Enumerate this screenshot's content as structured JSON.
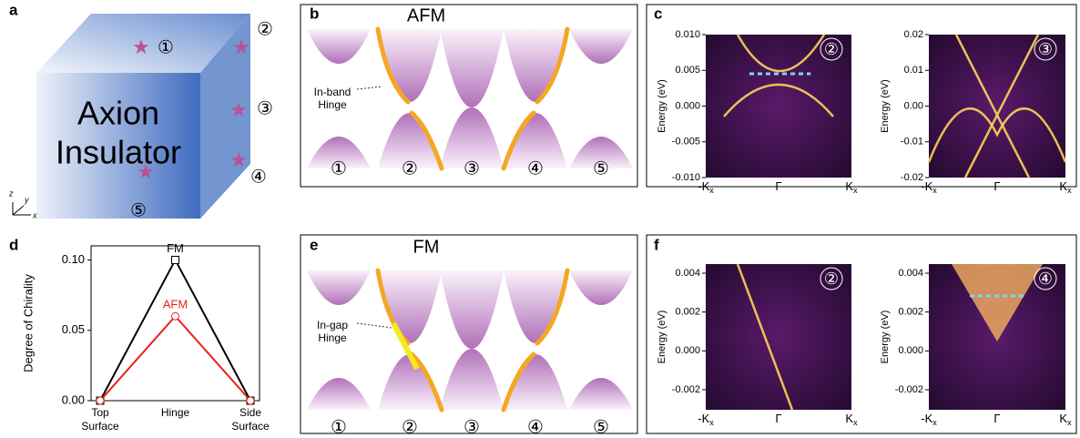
{
  "panel_a": {
    "label": "a",
    "lines": [
      "Axion",
      "Insulator"
    ],
    "sites": [
      "①",
      "②",
      "③",
      "④",
      "⑤"
    ],
    "axes": [
      "z",
      "y",
      "x"
    ]
  },
  "panel_b": {
    "label": "b",
    "title": "AFM",
    "annotation": [
      "In-band",
      "Hinge"
    ],
    "sites": [
      "①",
      "②",
      "③",
      "④",
      "⑤"
    ]
  },
  "panel_c": {
    "label": "c",
    "y_label": "Energy (eV)",
    "x_ticks": [
      {
        "main": "-K",
        "sub": "x"
      },
      {
        "main": "Γ"
      },
      {
        "main": "K",
        "sub": "x"
      }
    ],
    "plots": [
      {
        "badge": "②",
        "y_ticks": [
          "0.010",
          "0.005",
          "0.000",
          "-0.005",
          "-0.010"
        ]
      },
      {
        "badge": "③",
        "y_ticks": [
          "0.02",
          "0.01",
          "0.00",
          "-0.01",
          "-0.02"
        ]
      }
    ]
  },
  "panel_d": {
    "label": "d"
  },
  "chart_data": {
    "type": "line",
    "y_label": "Degree of Chirality",
    "categories": [
      [
        "Top",
        "Surface"
      ],
      [
        "Hinge"
      ],
      [
        "Side",
        "Surface"
      ]
    ],
    "series": [
      {
        "name": "FM",
        "color": "#000000",
        "marker": "square",
        "values": [
          0,
          0.1,
          0
        ]
      },
      {
        "name": "AFM",
        "color": "#e8201c",
        "marker": "circle",
        "values": [
          0,
          0.06,
          0
        ]
      }
    ],
    "ylim": [
      0,
      0.11
    ],
    "yticks": [
      {
        "value": 0,
        "label": "0.00"
      },
      {
        "value": 0.05,
        "label": "0.05"
      },
      {
        "value": 0.1,
        "label": "0.10"
      }
    ]
  },
  "panel_e": {
    "label": "e",
    "title": "FM",
    "annotation": [
      "In-gap",
      "Hinge"
    ],
    "sites": [
      "①",
      "②",
      "③",
      "④",
      "⑤"
    ]
  },
  "panel_f": {
    "label": "f",
    "y_label": "Energy (eV)",
    "x_ticks": [
      {
        "main": "-K",
        "sub": "x"
      },
      {
        "main": "Γ"
      },
      {
        "main": "K",
        "sub": "x"
      }
    ],
    "plots": [
      {
        "badge": "②",
        "y_ticks": [
          "0.004",
          "0.002",
          "0.000",
          "-0.002"
        ]
      },
      {
        "badge": "④",
        "y_ticks": [
          "0.004",
          "0.002",
          "0.000",
          "-0.002"
        ]
      }
    ]
  }
}
